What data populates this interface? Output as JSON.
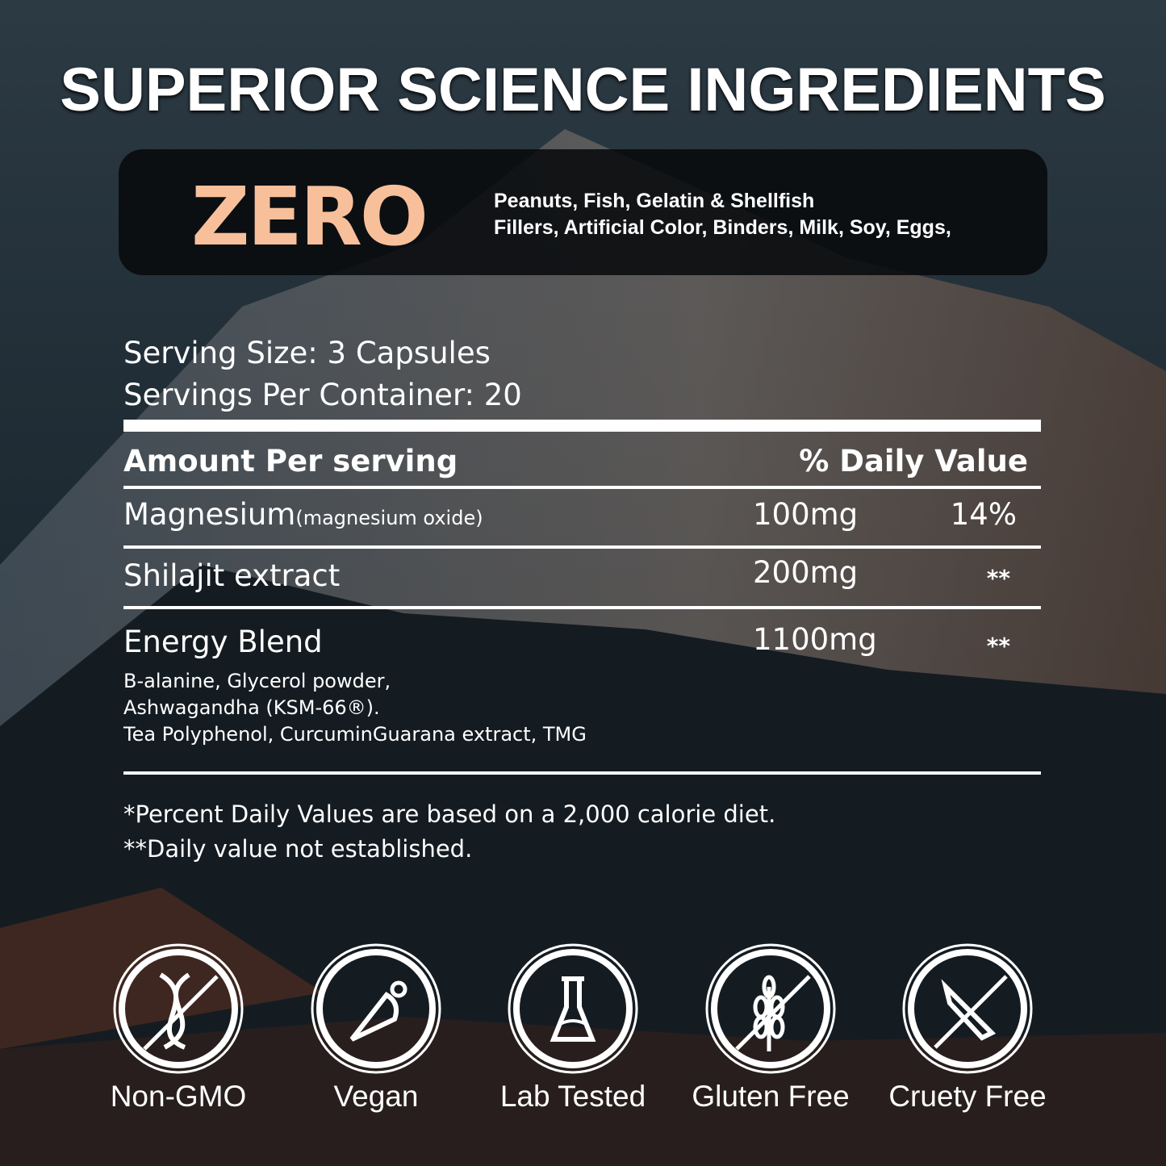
{
  "title": "SUPERIOR SCIENCE INGREDIENTS",
  "zero": {
    "heading": "ZERO",
    "line1": "Peanuts, Fish, Gelatin & Shellfish",
    "line2": "Fillers, Artificial Color, Binders, Milk, Soy, Eggs,",
    "accent": "#f8c09a"
  },
  "serving": {
    "size": "Serving Size: 3 Capsules",
    "per_container": "Servings Per Container: 20"
  },
  "table": {
    "header_amount": "Amount Per serving",
    "header_dv": "% Daily Value",
    "rows": [
      {
        "name": "Magnesium",
        "note": "(magnesium oxide)",
        "amount": "100mg",
        "dv": "14%"
      },
      {
        "name": "Shilajit extract",
        "amount": "200mg",
        "dv": "**"
      },
      {
        "name": "Energy Blend",
        "amount": "1100mg",
        "dv": "**",
        "details": [
          "B-alanine, Glycerol powder,",
          "Ashwagandha (KSM-66®).",
          "Tea Polyphenol, CurcuminGuarana extract, TMG"
        ]
      }
    ]
  },
  "footnotes": [
    "*Percent Daily Values are based on a 2,000 calorie diet.",
    "**Daily value not established."
  ],
  "badges": [
    {
      "label": "Non-GMO",
      "icon": "dna-crossed-icon"
    },
    {
      "label": "Vegan",
      "icon": "carrot-icon"
    },
    {
      "label": "Lab Tested",
      "icon": "flask-icon"
    },
    {
      "label": "Gluten Free",
      "icon": "wheat-crossed-icon"
    },
    {
      "label": "Cruety Free",
      "icon": "knife-crossed-icon"
    }
  ]
}
